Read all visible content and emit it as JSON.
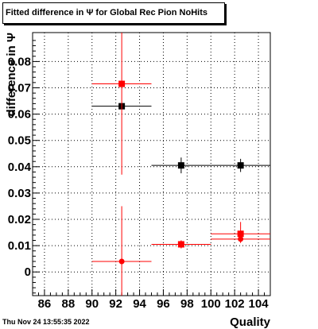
{
  "title": "Fitted difference in Ψ  for Global Rec Pion NoHits",
  "footer_date": "Thu Nov 24 13:55:35 2022",
  "chart_data": {
    "type": "scatter",
    "title": "Fitted difference in Ψ  for Global Rec Pion NoHits",
    "xlabel": "Quality",
    "ylabel": "difference in Ψ",
    "xlim": [
      85,
      105
    ],
    "ylim": [
      -0.009,
      0.091
    ],
    "x_ticks": [
      86,
      88,
      90,
      92,
      94,
      96,
      98,
      100,
      102,
      104
    ],
    "y_ticks": [
      0,
      0.01,
      0.02,
      0.03,
      0.04,
      0.05,
      0.06,
      0.07,
      0.08
    ],
    "y_tick_labels": [
      "0",
      "0.01",
      "0.02",
      "0.03",
      "0.04",
      "0.05",
      "0.06",
      "0.07",
      "0.08"
    ],
    "grid": true,
    "series": [
      {
        "color": "#000000",
        "marker": "square",
        "points": [
          {
            "x": 92.5,
            "y": 0.063,
            "xlo": 90,
            "xhi": 95,
            "ylo": 0.063,
            "yhi": 0.063
          },
          {
            "x": 97.5,
            "y": 0.0405,
            "xlo": 95,
            "xhi": 100,
            "ylo": 0.0375,
            "yhi": 0.0435
          },
          {
            "x": 102.5,
            "y": 0.0405,
            "xlo": 100,
            "xhi": 105,
            "ylo": 0.038,
            "yhi": 0.043
          }
        ]
      },
      {
        "color": "#ff0000",
        "marker": "square",
        "points": [
          {
            "x": 92.5,
            "y": 0.0715,
            "xlo": 90,
            "xhi": 95,
            "ylo": 0.037,
            "yhi": 0.091
          },
          {
            "x": 97.5,
            "y": 0.0105,
            "xlo": 95,
            "xhi": 100,
            "ylo": 0.009,
            "yhi": 0.012
          },
          {
            "x": 102.5,
            "y": 0.0145,
            "xlo": 100,
            "xhi": 105,
            "ylo": 0.012,
            "yhi": 0.019
          }
        ]
      },
      {
        "color": "#ff0000",
        "marker": "circle",
        "points": [
          {
            "x": 92.5,
            "y": 0.004,
            "xlo": 90,
            "xhi": 95,
            "ylo": -0.009,
            "yhi": 0.025
          },
          {
            "x": 97.5,
            "y": 0.0105,
            "xlo": 95,
            "xhi": 100,
            "ylo": 0.009,
            "yhi": 0.012
          },
          {
            "x": 102.5,
            "y": 0.0125,
            "xlo": 100,
            "xhi": 105,
            "ylo": 0.011,
            "yhi": 0.014
          }
        ]
      }
    ]
  }
}
